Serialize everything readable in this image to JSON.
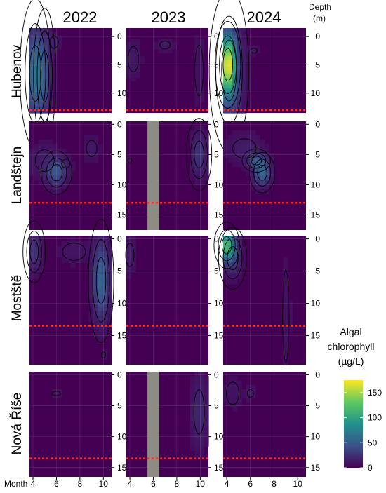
{
  "figure": {
    "depth_label_line1": "Depth",
    "depth_label_line2": "(m)",
    "month_label": "Month",
    "colorbar_title_lines": [
      "Algal",
      "chlorophyll",
      "(µg/L)"
    ]
  },
  "chart_data": {
    "type": "heatmap",
    "columns": [
      "2022",
      "2023",
      "2024"
    ],
    "rows": [
      "Hubenov",
      "Landštejn",
      "Mostště",
      "Nová Říše"
    ],
    "x_ticks": [
      4,
      6,
      8,
      10
    ],
    "x_range": [
      3.7,
      10.7
    ],
    "colorbar_ticks": [
      0,
      50,
      100,
      150
    ],
    "colorbar_range": [
      0,
      175
    ],
    "colors": {
      "low": "#440154",
      "mid_blue": "#3b528b",
      "teal": "#21918c",
      "green": "#5ec962",
      "high": "#fde725",
      "thermocline_line": "#ff2a2a",
      "no_data": "#8c8c84"
    },
    "panels": [
      {
        "row": "Hubenov",
        "depth_ticks": [
          0,
          5,
          10
        ],
        "depth_range": [
          -1.5,
          13.5
        ],
        "dotted_line_depth": 13.0,
        "blobs": [
          {
            "x": 4.2,
            "d": 6.5,
            "sx": 0.55,
            "sd": 5.5,
            "v": 60
          },
          {
            "x": 5.0,
            "d": 7,
            "sx": 0.4,
            "sd": 5,
            "v": 25
          },
          {
            "x": 5.8,
            "d": 1,
            "sx": 0.4,
            "sd": 1.2,
            "v": 10
          }
        ]
      },
      {
        "row": "Hubenov",
        "depth_ticks": [
          0,
          5,
          10
        ],
        "depth_range": [
          -1.5,
          13.5
        ],
        "dotted_line_depth": 13.0,
        "blobs": [
          {
            "x": 7.0,
            "d": 1.5,
            "sx": 0.5,
            "sd": 0.8,
            "v": 12
          },
          {
            "x": 4.3,
            "d": 4,
            "sx": 0.5,
            "sd": 2.5,
            "v": 10
          },
          {
            "x": 9.9,
            "d": 6,
            "sx": 0.4,
            "sd": 5,
            "v": 7
          }
        ]
      },
      {
        "row": "Hubenov",
        "depth_ticks": [
          0,
          5,
          10
        ],
        "depth_range": [
          -1.5,
          13.5
        ],
        "dotted_line_depth": 13.0,
        "blobs": [
          {
            "x": 4.1,
            "d": 5,
            "sx": 0.45,
            "sd": 3.2,
            "v": 120
          },
          {
            "x": 4.2,
            "d": 6,
            "sx": 0.7,
            "sd": 6,
            "v": 55
          },
          {
            "x": 6.3,
            "d": 2.5,
            "sx": 0.3,
            "sd": 0.5,
            "v": 10
          }
        ]
      },
      {
        "row": "Landštejn",
        "depth_ticks": [
          0,
          5,
          10,
          15
        ],
        "depth_range": [
          -0.5,
          17.5
        ],
        "dotted_line_depth": 13.0,
        "blobs": [
          {
            "x": 6.0,
            "d": 8,
            "sx": 0.55,
            "sd": 1.5,
            "v": 40
          },
          {
            "x": 5.0,
            "d": 6,
            "sx": 0.9,
            "sd": 2,
            "v": 12
          },
          {
            "x": 6.8,
            "d": 6.5,
            "sx": 0.4,
            "sd": 0.8,
            "v": 8
          },
          {
            "x": 9.0,
            "d": 4,
            "sx": 0.5,
            "sd": 1.5,
            "v": 10
          }
        ]
      },
      {
        "row": "Landštejn",
        "depth_ticks": [
          0,
          5,
          10,
          15
        ],
        "depth_range": [
          -0.5,
          17.5
        ],
        "dotted_line_depth": 13.0,
        "no_data_month": 6,
        "blobs": [
          {
            "x": 9.9,
            "d": 5,
            "sx": 0.45,
            "sd": 2.5,
            "v": 25
          },
          {
            "x": 4.0,
            "d": 6,
            "sx": 0.2,
            "sd": 0.4,
            "v": 6
          }
        ]
      },
      {
        "row": "Landštejn",
        "depth_ticks": [
          0,
          5,
          10,
          15
        ],
        "depth_range": [
          -0.5,
          17.5
        ],
        "dotted_line_depth": 13.0,
        "blobs": [
          {
            "x": 7.0,
            "d": 8,
            "sx": 0.45,
            "sd": 1.4,
            "v": 55
          },
          {
            "x": 6.5,
            "d": 6,
            "sx": 0.5,
            "sd": 0.8,
            "v": 35
          },
          {
            "x": 5.5,
            "d": 4,
            "sx": 1.1,
            "sd": 1.8,
            "v": 12
          }
        ]
      },
      {
        "row": "Mostště",
        "depth_ticks": [
          0,
          5,
          10,
          15
        ],
        "depth_range": [
          -0.5,
          19.5
        ],
        "dotted_line_depth": 13.5,
        "blobs": [
          {
            "x": 9.8,
            "d": 6.5,
            "sx": 0.45,
            "sd": 4,
            "v": 55
          },
          {
            "x": 4.1,
            "d": 2,
            "sx": 0.4,
            "sd": 2,
            "v": 25
          },
          {
            "x": 7.5,
            "d": 2,
            "sx": 1.1,
            "sd": 1.5,
            "v": 8
          },
          {
            "x": 10.0,
            "d": 18,
            "sx": 0.15,
            "sd": 0.5,
            "v": 6
          }
        ]
      },
      {
        "row": "Mostště",
        "depth_ticks": [
          0,
          5,
          10,
          15
        ],
        "depth_range": [
          -0.5,
          19.5
        ],
        "dotted_line_depth": 13.5,
        "blobs": [
          {
            "x": 4.0,
            "d": 2.5,
            "sx": 0.4,
            "sd": 2,
            "v": 12
          }
        ]
      },
      {
        "row": "Mostště",
        "depth_ticks": [
          0,
          5,
          10,
          15
        ],
        "depth_range": [
          -0.5,
          19.5
        ],
        "dotted_line_depth": 13.5,
        "blobs": [
          {
            "x": 4.0,
            "d": 1,
            "sx": 0.45,
            "sd": 1.5,
            "v": 110
          },
          {
            "x": 4.5,
            "d": 3,
            "sx": 0.5,
            "sd": 2,
            "v": 25
          },
          {
            "x": 9.0,
            "d": 12,
            "sx": 0.3,
            "sd": 8,
            "v": 6
          }
        ]
      },
      {
        "row": "Nová Říše",
        "depth_ticks": [
          0,
          5,
          10,
          15
        ],
        "depth_range": [
          -0.5,
          16.5
        ],
        "dotted_line_depth": 13.5,
        "blobs": [
          {
            "x": 6.0,
            "d": 3,
            "sx": 0.4,
            "sd": 0.4,
            "v": 10
          }
        ]
      },
      {
        "row": "Nová Říše",
        "depth_ticks": [
          0,
          5,
          10,
          15
        ],
        "depth_range": [
          -0.5,
          16.5
        ],
        "dotted_line_depth": 13.5,
        "no_data_month": 6,
        "blobs": [
          {
            "x": 9.9,
            "d": 6,
            "sx": 0.5,
            "sd": 4,
            "v": 18
          }
        ]
      },
      {
        "row": "Nová Říše",
        "depth_ticks": [
          0,
          5,
          10,
          15
        ],
        "depth_range": [
          -0.5,
          16.5
        ],
        "dotted_line_depth": 13.5,
        "blobs": [
          {
            "x": 6.0,
            "d": 3,
            "sx": 0.3,
            "sd": 0.7,
            "v": 12
          },
          {
            "x": 4.5,
            "d": 3,
            "sx": 0.6,
            "sd": 2,
            "v": 7
          }
        ]
      }
    ]
  }
}
